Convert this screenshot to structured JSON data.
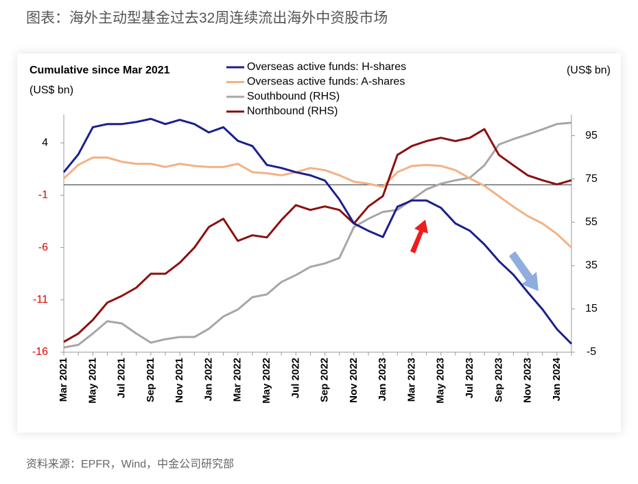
{
  "title": "图表：海外主动型基金过去32周连续流出海外中资股市场",
  "source": "资料来源：EPFR，Wind，中金公司研究部",
  "chart_data": {
    "type": "line",
    "left_axis_title": "Cumulative since Mar 2021",
    "left_axis_unit": "(US$ bn)",
    "right_axis_unit": "(US$ bn)",
    "categories": [
      "Mar 2021",
      null,
      "May 2021",
      null,
      "Jul 2021",
      null,
      "Sep 2021",
      null,
      "Nov 2021",
      null,
      "Jan 2022",
      null,
      "Mar 2022",
      null,
      "May 2022",
      null,
      "Jul 2022",
      null,
      "Sep 2022",
      null,
      "Nov 2022",
      null,
      "Jan 2023",
      null,
      "Mar 2023",
      null,
      "May 2023",
      null,
      "Jul 2023",
      null,
      "Sep 2023",
      null,
      "Nov 2023",
      null,
      "Jan 2024",
      null
    ],
    "ylim": [
      -16,
      6.7
    ],
    "yticks": [
      4,
      -1,
      -6,
      -11,
      -16
    ],
    "y2lim": [
      -5,
      104.7
    ],
    "y2ticks": [
      95,
      75,
      55,
      35,
      15,
      -5
    ],
    "series": [
      {
        "name": "Overseas active funds: H-shares",
        "color": "#1a1f8c",
        "values": [
          1.2,
          2.9,
          5.5,
          5.8,
          5.8,
          6.0,
          6.3,
          5.8,
          6.2,
          5.8,
          5.0,
          5.5,
          4.2,
          3.7,
          1.9,
          1.6,
          1.2,
          0.9,
          0.4,
          -1.4,
          -3.7,
          -4.4,
          -5.0,
          -2.1,
          -1.5,
          -1.5,
          -2.2,
          -3.7,
          -4.4,
          -5.7,
          -7.3,
          -8.6,
          -10.3,
          -11.9,
          -13.8,
          -15.2
        ]
      },
      {
        "name": "Overseas active funds: A-shares",
        "color": "#f4b183",
        "values": [
          0.6,
          1.9,
          2.6,
          2.6,
          2.2,
          2.0,
          2.0,
          1.7,
          2.0,
          1.8,
          1.7,
          1.7,
          2.0,
          1.2,
          1.1,
          0.9,
          1.2,
          1.6,
          1.4,
          0.9,
          0.3,
          0.1,
          -0.2,
          1.2,
          1.8,
          1.9,
          1.8,
          1.4,
          0.6,
          -0.1,
          -1.1,
          -2.1,
          -3.0,
          -3.7,
          -4.7,
          -6.0
        ]
      },
      {
        "name": "Southbound (RHS)",
        "color": "#a6a6a6",
        "axis": "y2",
        "values": [
          -2.8,
          -1.6,
          3.6,
          9.3,
          8.3,
          3.6,
          -0.6,
          1.0,
          2.0,
          2.0,
          5.8,
          11.5,
          14.7,
          20.4,
          21.7,
          27.4,
          30.6,
          34.4,
          36.0,
          38.5,
          52.8,
          56.6,
          59.8,
          60.7,
          65.5,
          70.2,
          72.8,
          74.4,
          75.6,
          81.3,
          90.9,
          93.4,
          95.6,
          97.9,
          100.4,
          101.0
        ]
      },
      {
        "name": "Northbound (RHS)",
        "color": "#8b1010",
        "axis": "y2",
        "values": [
          -0.2,
          3.6,
          9.9,
          17.9,
          21.0,
          24.8,
          31.2,
          31.2,
          36.3,
          43.3,
          52.8,
          56.6,
          46.4,
          49.0,
          48.0,
          56.0,
          62.9,
          60.7,
          62.3,
          60.7,
          54.4,
          62.3,
          67.1,
          86.1,
          90.2,
          92.5,
          94.0,
          92.5,
          94.0,
          98.0,
          86.1,
          81.3,
          76.6,
          74.4,
          72.5,
          74.4
        ]
      }
    ]
  }
}
